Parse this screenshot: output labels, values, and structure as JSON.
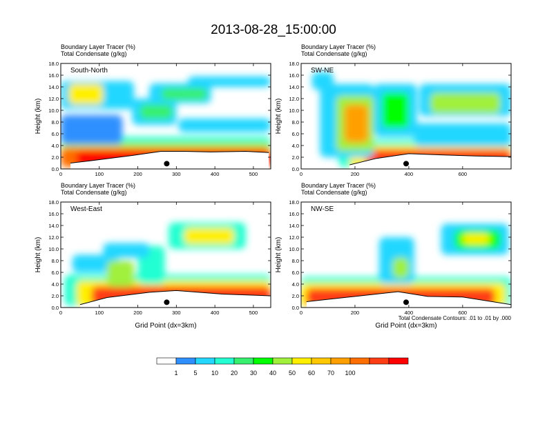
{
  "title": "2013-08-28_15:00:00",
  "colorbar": {
    "colors": [
      "#ffffff",
      "#2e90ff",
      "#23d7ff",
      "#23ffd2",
      "#37f06e",
      "#00ff00",
      "#a0f03c",
      "#fff000",
      "#ffc800",
      "#ffa000",
      "#ff6e00",
      "#ff3c14",
      "#ff0000"
    ],
    "labels": [
      "1",
      "5",
      "10",
      "20",
      "30",
      "40",
      "50",
      "60",
      "70",
      "100"
    ]
  },
  "footnote": "Total Condensate Contours: .01 to .01 by .000",
  "chart_data": [
    {
      "type": "heatmap",
      "panel_label": "South-North",
      "title_lines": [
        "Boundary Layer Tracer    (%)",
        "Total Condensate    (g/kg)"
      ],
      "ylabel": "Height (km)",
      "xlabel": "",
      "ylim": [
        0,
        18
      ],
      "xlim": [
        0,
        545
      ],
      "yticks": [
        "0.0",
        "2.0",
        "4.0",
        "6.0",
        "8.0",
        "10.0",
        "12.0",
        "14.0",
        "16.0",
        "18.0"
      ],
      "xticks": [
        0,
        100,
        200,
        300,
        400,
        500
      ],
      "marker_x": 275,
      "ridges": [
        [
          25,
          1.0
        ],
        [
          90,
          1.5
        ],
        [
          185,
          2.3
        ],
        [
          260,
          3.0
        ],
        [
          320,
          3.0
        ],
        [
          390,
          2.9
        ],
        [
          480,
          3.0
        ],
        [
          540,
          2.8
        ]
      ],
      "features": [
        {
          "x": [
            0,
            545
          ],
          "y": [
            0.3,
            5.5
          ],
          "level": 3
        },
        {
          "x": [
            0,
            545
          ],
          "y": [
            0.3,
            4.5
          ],
          "level": 6
        },
        {
          "x": [
            0,
            545
          ],
          "y": [
            0.3,
            3.6
          ],
          "level": 10
        },
        {
          "x": [
            40,
            545
          ],
          "y": [
            0.5,
            3.0
          ],
          "level": 12
        },
        {
          "x": [
            0,
            190
          ],
          "y": [
            10.2,
            15.0
          ],
          "level": 2
        },
        {
          "x": [
            20,
            110
          ],
          "y": [
            11.0,
            14.5
          ],
          "level": 7
        },
        {
          "x": [
            185,
            300
          ],
          "y": [
            7.5,
            12.0
          ],
          "level": 2
        },
        {
          "x": [
            205,
            290
          ],
          "y": [
            8.5,
            11.0
          ],
          "level": 4
        },
        {
          "x": [
            230,
            390
          ],
          "y": [
            11.2,
            14.6
          ],
          "level": 2
        },
        {
          "x": [
            260,
            380
          ],
          "y": [
            11.8,
            13.8
          ],
          "level": 4
        },
        {
          "x": [
            330,
            545
          ],
          "y": [
            14.0,
            15.8
          ],
          "level": 2
        },
        {
          "x": [
            305,
            545
          ],
          "y": [
            6.3,
            8.6
          ],
          "level": 2
        },
        {
          "x": [
            0,
            160
          ],
          "y": [
            4.2,
            9.2
          ],
          "level": 1
        }
      ]
    },
    {
      "type": "heatmap",
      "panel_label": "SW-NE",
      "title_lines": [
        "Boundary Layer Tracer    (%)",
        "Total Condensate    (g/kg)"
      ],
      "ylabel": "Height (km)",
      "xlabel": "",
      "ylim": [
        0,
        18
      ],
      "xlim": [
        0,
        780
      ],
      "yticks": [
        "0.0",
        "2.0",
        "4.0",
        "6.0",
        "8.0",
        "10.0",
        "12.0",
        "14.0",
        "16.0",
        "18.0"
      ],
      "xticks": [
        0,
        200,
        400,
        600
      ],
      "marker_x": 390,
      "ridges": [
        [
          180,
          0.7
        ],
        [
          280,
          1.8
        ],
        [
          400,
          2.6
        ],
        [
          520,
          2.4
        ],
        [
          650,
          2.2
        ],
        [
          780,
          2.1
        ]
      ],
      "features": [
        {
          "x": [
            140,
            780
          ],
          "y": [
            0.3,
            5.0
          ],
          "level": 3
        },
        {
          "x": [
            180,
            780
          ],
          "y": [
            0.3,
            4.0
          ],
          "level": 7
        },
        {
          "x": [
            240,
            780
          ],
          "y": [
            0.4,
            3.3
          ],
          "level": 11
        },
        {
          "x": [
            70,
            270
          ],
          "y": [
            2.0,
            14.5
          ],
          "level": 2
        },
        {
          "x": [
            130,
            270
          ],
          "y": [
            3.0,
            12.5
          ],
          "level": 6
        },
        {
          "x": [
            160,
            250
          ],
          "y": [
            4.5,
            11.0
          ],
          "level": 9
        },
        {
          "x": [
            270,
            430
          ],
          "y": [
            5.5,
            14.5
          ],
          "level": 2
        },
        {
          "x": [
            300,
            400
          ],
          "y": [
            7.0,
            13.0
          ],
          "level": 5
        },
        {
          "x": [
            440,
            780
          ],
          "y": [
            9.0,
            14.5
          ],
          "level": 2
        },
        {
          "x": [
            480,
            740
          ],
          "y": [
            9.5,
            13.0
          ],
          "level": 6
        },
        {
          "x": [
            420,
            780
          ],
          "y": [
            3.8,
            7.8
          ],
          "level": 2
        },
        {
          "x": [
            40,
            120
          ],
          "y": [
            13.5,
            16.5
          ],
          "level": 2
        }
      ]
    },
    {
      "type": "heatmap",
      "panel_label": "West-East",
      "title_lines": [
        "Boundary Layer Tracer    (%)",
        "Total Condensate    (g/kg)"
      ],
      "ylabel": "Height (km)",
      "xlabel": "Grid Point (dx=3km)",
      "ylim": [
        0,
        18
      ],
      "xlim": [
        0,
        545
      ],
      "yticks": [
        "0.0",
        "2.0",
        "4.0",
        "6.0",
        "8.0",
        "10.0",
        "12.0",
        "14.0",
        "16.0",
        "18.0"
      ],
      "xticks": [
        0,
        100,
        200,
        300,
        400,
        500
      ],
      "marker_x": 275,
      "ridges": [
        [
          50,
          0.5
        ],
        [
          120,
          1.7
        ],
        [
          230,
          2.6
        ],
        [
          300,
          2.9
        ],
        [
          420,
          2.3
        ],
        [
          545,
          2.0
        ]
      ],
      "features": [
        {
          "x": [
            10,
            545
          ],
          "y": [
            0.3,
            5.6
          ],
          "level": 3
        },
        {
          "x": [
            40,
            545
          ],
          "y": [
            0.3,
            4.6
          ],
          "level": 7
        },
        {
          "x": [
            80,
            545
          ],
          "y": [
            0.3,
            3.6
          ],
          "level": 11
        },
        {
          "x": [
            30,
            150
          ],
          "y": [
            6.0,
            9.0
          ],
          "level": 2
        },
        {
          "x": [
            120,
            190
          ],
          "y": [
            3.5,
            8.0
          ],
          "level": 6
        },
        {
          "x": [
            200,
            270
          ],
          "y": [
            4.0,
            10.5
          ],
          "level": 3
        },
        {
          "x": [
            110,
            230
          ],
          "y": [
            8.5,
            11.0
          ],
          "level": 2
        },
        {
          "x": [
            280,
            480
          ],
          "y": [
            10.0,
            14.5
          ],
          "level": 3
        },
        {
          "x": [
            320,
            450
          ],
          "y": [
            10.8,
            13.6
          ],
          "level": 7
        }
      ]
    },
    {
      "type": "heatmap",
      "panel_label": "NW-SE",
      "title_lines": [
        "Boundary Layer Tracer    (%)",
        "Total Condensate    (g/kg)"
      ],
      "ylabel": "Height (km)",
      "xlabel": "Grid Point (dx=3km)",
      "ylim": [
        0,
        18
      ],
      "xlim": [
        0,
        780
      ],
      "yticks": [
        "0.0",
        "2.0",
        "4.0",
        "6.0",
        "8.0",
        "10.0",
        "12.0",
        "14.0",
        "16.0",
        "18.0"
      ],
      "xticks": [
        0,
        200,
        400,
        600
      ],
      "marker_x": 390,
      "ridges": [
        [
          20,
          1.0
        ],
        [
          200,
          1.9
        ],
        [
          360,
          2.7
        ],
        [
          470,
          1.9
        ],
        [
          600,
          1.8
        ],
        [
          780,
          0.5
        ]
      ],
      "features": [
        {
          "x": [
            0,
            780
          ],
          "y": [
            0.2,
            5.2
          ],
          "level": 3
        },
        {
          "x": [
            0,
            760
          ],
          "y": [
            0.2,
            4.2
          ],
          "level": 7
        },
        {
          "x": [
            20,
            720
          ],
          "y": [
            0.3,
            3.3
          ],
          "level": 11
        },
        {
          "x": [
            290,
            420
          ],
          "y": [
            4.0,
            12.0
          ],
          "level": 2
        },
        {
          "x": [
            340,
            400
          ],
          "y": [
            5.0,
            8.5
          ],
          "level": 6
        },
        {
          "x": [
            520,
            770
          ],
          "y": [
            9.0,
            14.3
          ],
          "level": 2
        },
        {
          "x": [
            570,
            740
          ],
          "y": [
            10.0,
            13.2
          ],
          "level": 5
        },
        {
          "x": [
            600,
            700
          ],
          "y": [
            10.8,
            12.6
          ],
          "level": 7
        }
      ]
    }
  ]
}
